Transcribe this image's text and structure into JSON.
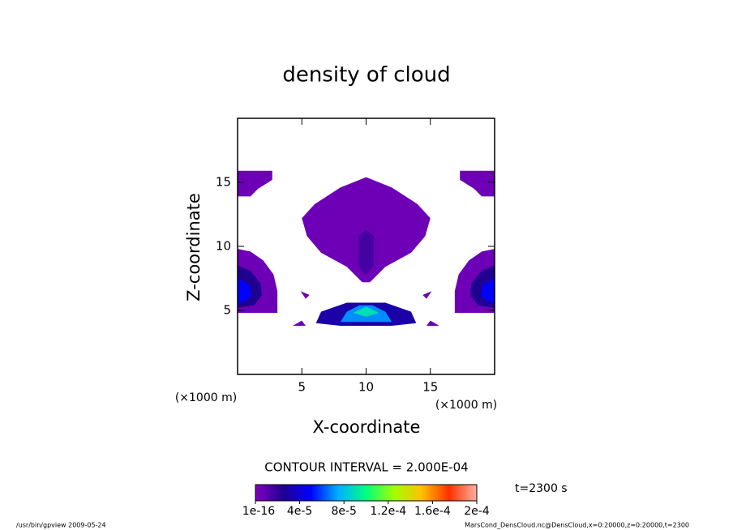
{
  "chart_data": {
    "type": "contour",
    "title": "density of cloud",
    "x_label": "X-coordinate",
    "y_label": "Z-coordinate",
    "x_unit": "(×1000 m)",
    "y_unit": "(×1000 m)",
    "xlim": [
      0,
      20
    ],
    "ylim": [
      0,
      20
    ],
    "xticks": [
      5,
      10,
      15
    ],
    "yticks": [
      5,
      10,
      15
    ],
    "regions": [
      {
        "level": 5e-06,
        "points": [
          [
            0,
            13.9
          ],
          [
            0,
            15.9
          ],
          [
            2.7,
            15.9
          ],
          [
            2.7,
            15.2
          ],
          [
            1.6,
            14.5
          ],
          [
            1,
            13.9
          ]
        ]
      },
      {
        "level": 5e-06,
        "points": [
          [
            20,
            13.9
          ],
          [
            20,
            15.9
          ],
          [
            17.3,
            15.9
          ],
          [
            17.3,
            15.2
          ],
          [
            18.4,
            14.5
          ],
          [
            19,
            13.9
          ]
        ]
      },
      {
        "level": 5e-06,
        "points": [
          [
            10,
            15.4
          ],
          [
            12,
            14.6
          ],
          [
            14,
            13.3
          ],
          [
            15,
            12.2
          ],
          [
            14.6,
            10.8
          ],
          [
            13.5,
            9.5
          ],
          [
            11.5,
            8.4
          ],
          [
            10.3,
            7.2
          ],
          [
            9.7,
            7.2
          ],
          [
            8.5,
            8.4
          ],
          [
            6.5,
            9.5
          ],
          [
            5.4,
            10.8
          ],
          [
            5,
            12.2
          ],
          [
            6,
            13.3
          ],
          [
            8,
            14.6
          ]
        ]
      },
      {
        "level": 1.5e-05,
        "points": [
          [
            10,
            11.3
          ],
          [
            10.6,
            10.8
          ],
          [
            10.6,
            8.5
          ],
          [
            10,
            7.8
          ],
          [
            9.4,
            8.5
          ],
          [
            9.4,
            10.8
          ]
        ]
      },
      {
        "level": 5e-06,
        "points": [
          [
            0,
            9.8
          ],
          [
            1,
            9.6
          ],
          [
            2,
            8.9
          ],
          [
            2.8,
            7.8
          ],
          [
            3.1,
            6.5
          ],
          [
            3.1,
            4.8
          ],
          [
            0,
            4.8
          ]
        ]
      },
      {
        "level": 2.5e-05,
        "points": [
          [
            0,
            8.5
          ],
          [
            1,
            8.1
          ],
          [
            1.8,
            7.1
          ],
          [
            1.9,
            6.2
          ],
          [
            1.3,
            5.4
          ],
          [
            0,
            5.2
          ]
        ]
      },
      {
        "level": 5e-05,
        "points": [
          [
            0,
            7.5
          ],
          [
            0.9,
            7
          ],
          [
            1.1,
            6.2
          ],
          [
            0.6,
            5.7
          ],
          [
            0,
            5.6
          ]
        ]
      },
      {
        "level": 5e-06,
        "points": [
          [
            20,
            9.8
          ],
          [
            19,
            9.6
          ],
          [
            18,
            8.9
          ],
          [
            17.2,
            7.8
          ],
          [
            16.9,
            6.5
          ],
          [
            16.9,
            4.8
          ],
          [
            20,
            4.8
          ]
        ]
      },
      {
        "level": 2.5e-05,
        "points": [
          [
            20,
            8.5
          ],
          [
            19,
            8.1
          ],
          [
            18.2,
            7.1
          ],
          [
            18.1,
            6.2
          ],
          [
            18.7,
            5.4
          ],
          [
            20,
            5.2
          ]
        ]
      },
      {
        "level": 5e-05,
        "points": [
          [
            20,
            7.5
          ],
          [
            19.1,
            7
          ],
          [
            18.9,
            6.2
          ],
          [
            19.4,
            5.7
          ],
          [
            20,
            5.6
          ]
        ]
      },
      {
        "level": 3e-05,
        "points": [
          [
            6.1,
            4
          ],
          [
            6.5,
            4.9
          ],
          [
            8.5,
            5.6
          ],
          [
            11.5,
            5.6
          ],
          [
            13.5,
            4.9
          ],
          [
            13.9,
            4
          ],
          [
            12,
            3.8
          ],
          [
            8,
            3.8
          ]
        ]
      },
      {
        "level": 7e-05,
        "points": [
          [
            8,
            4.1
          ],
          [
            8.5,
            4.9
          ],
          [
            9.5,
            5.4
          ],
          [
            10.5,
            5.4
          ],
          [
            11.5,
            4.9
          ],
          [
            12,
            4.1
          ]
        ]
      },
      {
        "level": 9e-05,
        "points": [
          [
            9,
            4.8
          ],
          [
            10,
            5.3
          ],
          [
            11,
            4.8
          ],
          [
            10,
            4.5
          ]
        ]
      },
      {
        "level": 5e-06,
        "points": [
          [
            4.9,
            6.5
          ],
          [
            5.6,
            6.2
          ],
          [
            5.3,
            5.9
          ]
        ]
      },
      {
        "level": 5e-06,
        "points": [
          [
            4.3,
            3.8
          ],
          [
            5,
            4.2
          ],
          [
            5.3,
            3.8
          ]
        ]
      },
      {
        "level": 5e-06,
        "points": [
          [
            15.1,
            6.5
          ],
          [
            14.4,
            6.2
          ],
          [
            14.7,
            5.9
          ]
        ]
      },
      {
        "level": 5e-06,
        "points": [
          [
            15.7,
            3.8
          ],
          [
            15,
            4.2
          ],
          [
            14.7,
            3.8
          ]
        ]
      }
    ],
    "colormap": [
      "#8000c0",
      "#200090",
      "#0000ff",
      "#00b0ff",
      "#00ff80",
      "#a0ff00",
      "#ffc000",
      "#ff3000",
      "#ffb0a0"
    ],
    "clim": [
      0,
      0.0002
    ],
    "colorbar_ticks": [
      {
        "value": 1e-16,
        "label": "1e-16"
      },
      {
        "value": 4e-05,
        "label": "4e-5"
      },
      {
        "value": 8e-05,
        "label": "8e-5"
      },
      {
        "value": 0.00012,
        "label": "1.2e-4"
      },
      {
        "value": 0.00016,
        "label": "1.6e-4"
      },
      {
        "value": 0.0002,
        "label": "2e-4"
      }
    ],
    "contour_interval": "CONTOUR INTERVAL = 2.000E-04",
    "time_label": "t=2300 s",
    "footer_left": "/usr/bin/gpview  2009-05-24",
    "footer_right": "MarsCond_DensCloud.nc@DensCloud,x=0:20000,z=0:20000,t=2300"
  }
}
